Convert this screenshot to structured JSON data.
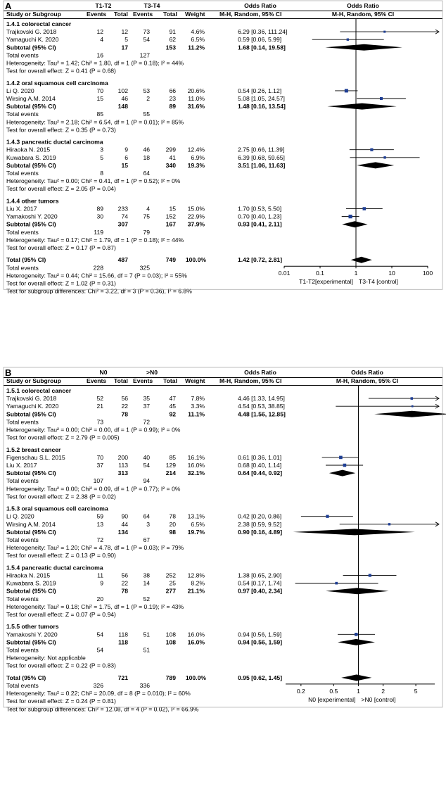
{
  "chart_data": [
    {
      "type": "forest",
      "panel": "A",
      "columns": {
        "study": "Study or Subgroup",
        "group1": "T1-T2",
        "group2": "T3-T4",
        "events": "Events",
        "total": "Total",
        "weight": "Weight",
        "or_title": "Odds Ratio",
        "or_method": "M-H, Random, 95% CI"
      },
      "axis": {
        "scale": "log",
        "ticks": [
          "0.01",
          "0.1",
          "1",
          "10",
          "100"
        ],
        "tick_values": [
          0.01,
          0.1,
          1,
          10,
          100
        ],
        "label_left": "T1-T2[experimental]",
        "label_right": "T3-T4 [control]"
      },
      "subgroups": [
        {
          "title": "1.4.1 colorectal cancer",
          "studies": [
            {
              "name": "Trajkovski G. 2018",
              "e1": "12",
              "t1": "12",
              "e2": "73",
              "t2": "91",
              "weight": "4.6%",
              "or_text": "6.29 [0.36, 111.24]",
              "or": 6.29,
              "lo": 0.36,
              "hi": 111.24
            },
            {
              "name": "Yamaguchi K. 2020",
              "e1": "4",
              "t1": "5",
              "e2": "54",
              "t2": "62",
              "weight": "6.5%",
              "or_text": "0.59 [0.06, 5.99]",
              "or": 0.59,
              "lo": 0.06,
              "hi": 5.99
            }
          ],
          "subtotal": {
            "label": "Subtotal (95% CI)",
            "t1": "17",
            "t2": "153",
            "weight": "11.2%",
            "or_text": "1.68 [0.14, 19.58]",
            "or": 1.68,
            "lo": 0.14,
            "hi": 19.58
          },
          "total_events": {
            "label": "Total events",
            "e1": "16",
            "e2": "127"
          },
          "heterogeneity": "Heterogeneity: Tau² = 1.42; Chi² = 1.80, df = 1 (P = 0.18); I² = 44%",
          "overall": "Test for overall effect: Z = 0.41 (P = 0.68)"
        },
        {
          "title": "1.4.2 oral squamous cell carcinoma",
          "studies": [
            {
              "name": "Li Q. 2020",
              "e1": "70",
              "t1": "102",
              "e2": "53",
              "t2": "66",
              "weight": "20.6%",
              "or_text": "0.54 [0.26, 1.12]",
              "or": 0.54,
              "lo": 0.26,
              "hi": 1.12
            },
            {
              "name": "Wirsing A.M. 2014",
              "e1": "15",
              "t1": "46",
              "e2": "2",
              "t2": "23",
              "weight": "11.0%",
              "or_text": "5.08 [1.05, 24.57]",
              "or": 5.08,
              "lo": 1.05,
              "hi": 24.57
            }
          ],
          "subtotal": {
            "label": "Subtotal (95% CI)",
            "t1": "148",
            "t2": "89",
            "weight": "31.6%",
            "or_text": "1.48 [0.16, 13.54]",
            "or": 1.48,
            "lo": 0.16,
            "hi": 13.54
          },
          "total_events": {
            "label": "Total events",
            "e1": "85",
            "e2": "55"
          },
          "heterogeneity": "Heterogeneity: Tau² = 2.18; Chi² = 6.54, df = 1 (P = 0.01); I² = 85%",
          "overall": "Test for overall effect: Z = 0.35 (P = 0.73)"
        },
        {
          "title": "1.4.3 pancreatic ductal carcinoma",
          "studies": [
            {
              "name": "Hiraoka N. 2015",
              "e1": "3",
              "t1": "9",
              "e2": "46",
              "t2": "299",
              "weight": "12.4%",
              "or_text": "2.75 [0.66, 11.39]",
              "or": 2.75,
              "lo": 0.66,
              "hi": 11.39
            },
            {
              "name": "Kuwabara S. 2019",
              "e1": "5",
              "t1": "6",
              "e2": "18",
              "t2": "41",
              "weight": "6.9%",
              "or_text": "6.39 [0.68, 59.65]",
              "or": 6.39,
              "lo": 0.68,
              "hi": 59.65
            }
          ],
          "subtotal": {
            "label": "Subtotal (95% CI)",
            "t1": "15",
            "t2": "340",
            "weight": "19.3%",
            "or_text": "3.51 [1.06, 11.63]",
            "or": 3.51,
            "lo": 1.06,
            "hi": 11.63
          },
          "total_events": {
            "label": "Total events",
            "e1": "8",
            "e2": "64"
          },
          "heterogeneity": "Heterogeneity: Tau² = 0.00; Chi² = 0.41, df = 1 (P = 0.52); I² = 0%",
          "overall": "Test for overall effect: Z = 2.05 (P = 0.04)"
        },
        {
          "title": "1.4.4 other tumors",
          "studies": [
            {
              "name": "Liu X. 2017",
              "e1": "89",
              "t1": "233",
              "e2": "4",
              "t2": "15",
              "weight": "15.0%",
              "or_text": "1.70 [0.53, 5.50]",
              "or": 1.7,
              "lo": 0.53,
              "hi": 5.5
            },
            {
              "name": "Yamakoshi Y. 2020",
              "e1": "30",
              "t1": "74",
              "e2": "75",
              "t2": "152",
              "weight": "22.9%",
              "or_text": "0.70 [0.40, 1.23]",
              "or": 0.7,
              "lo": 0.4,
              "hi": 1.23
            }
          ],
          "subtotal": {
            "label": "Subtotal (95% CI)",
            "t1": "307",
            "t2": "167",
            "weight": "37.9%",
            "or_text": "0.93 [0.41, 2.11]",
            "or": 0.93,
            "lo": 0.41,
            "hi": 2.11
          },
          "total_events": {
            "label": "Total events",
            "e1": "119",
            "e2": "79"
          },
          "heterogeneity": "Heterogeneity: Tau² = 0.17; Chi² = 1.79, df = 1 (P = 0.18); I² = 44%",
          "overall": "Test for overall effect: Z = 0.17 (P = 0.87)"
        }
      ],
      "total": {
        "label": "Total (95% CI)",
        "t1": "487",
        "t2": "749",
        "weight": "100.0%",
        "or_text": "1.42 [0.72, 2.81]",
        "or": 1.42,
        "lo": 0.72,
        "hi": 2.81
      },
      "total_events": {
        "label": "Total events",
        "e1": "228",
        "e2": "325"
      },
      "footer": [
        "Heterogeneity: Tau² = 0.44; Chi² = 15.66, df = 7 (P = 0.03); I² = 55%",
        "Test for overall effect: Z = 1.02 (P = 0.31)",
        "Test for subgroup differences: Chi² = 3.22, df = 3 (P = 0.36), I² = 6.8%"
      ]
    },
    {
      "type": "forest",
      "panel": "B",
      "columns": {
        "study": "Study or Subgroup",
        "group1": "N0",
        "group2": ">N0",
        "events": "Events",
        "total": "Total",
        "weight": "Weight",
        "or_title": "Odds Ratio",
        "or_method": "M-H, Random, 95% CI"
      },
      "axis": {
        "scale": "log",
        "ticks": [
          "0.2",
          "0.5",
          "1",
          "2",
          "5"
        ],
        "tick_values": [
          0.2,
          0.5,
          1,
          2,
          5
        ],
        "label_left": "N0 [experimental]",
        "label_right": ">N0 [control]"
      },
      "subgroups": [
        {
          "title": "1.5.1 colorectal cancer",
          "studies": [
            {
              "name": "Trajkovski G. 2018",
              "e1": "52",
              "t1": "56",
              "e2": "35",
              "t2": "47",
              "weight": "7.8%",
              "or_text": "4.46 [1.33, 14.95]",
              "or": 4.46,
              "lo": 1.33,
              "hi": 14.95
            },
            {
              "name": "Yamaguchi K. 2020",
              "e1": "21",
              "t1": "22",
              "e2": "37",
              "t2": "45",
              "weight": "3.3%",
              "or_text": "4.54 [0.53, 38.85]",
              "or": 4.54,
              "lo": 0.53,
              "hi": 38.85
            }
          ],
          "subtotal": {
            "label": "Subtotal (95% CI)",
            "t1": "78",
            "t2": "92",
            "weight": "11.1%",
            "or_text": "4.48 [1.56, 12.85]",
            "or": 4.48,
            "lo": 1.56,
            "hi": 12.85
          },
          "total_events": {
            "label": "Total events",
            "e1": "73",
            "e2": "72"
          },
          "heterogeneity": "Heterogeneity: Tau² = 0.00; Chi² = 0.00, df = 1 (P = 0.99); I² = 0%",
          "overall": "Test for overall effect: Z = 2.79 (P = 0.005)"
        },
        {
          "title": "1.5.2 breast cancer",
          "studies": [
            {
              "name": "Figenschau S.L. 2015",
              "e1": "70",
              "t1": "200",
              "e2": "40",
              "t2": "85",
              "weight": "16.1%",
              "or_text": "0.61 [0.36, 1.01]",
              "or": 0.61,
              "lo": 0.36,
              "hi": 1.01
            },
            {
              "name": "Liu X. 2017",
              "e1": "37",
              "t1": "113",
              "e2": "54",
              "t2": "129",
              "weight": "16.0%",
              "or_text": "0.68 [0.40, 1.14]",
              "or": 0.68,
              "lo": 0.4,
              "hi": 1.14
            }
          ],
          "subtotal": {
            "label": "Subtotal (95% CI)",
            "t1": "313",
            "t2": "214",
            "weight": "32.1%",
            "or_text": "0.64 [0.44, 0.92]",
            "or": 0.64,
            "lo": 0.44,
            "hi": 0.92
          },
          "total_events": {
            "label": "Total events",
            "e1": "107",
            "e2": "94"
          },
          "heterogeneity": "Heterogeneity: Tau² = 0.00; Chi² = 0.09, df = 1 (P = 0.77); I² = 0%",
          "overall": "Test for overall effect: Z = 2.38 (P = 0.02)"
        },
        {
          "title": "1.5.3 oral squamous cell carcinoma",
          "studies": [
            {
              "name": "Li Q. 2020",
              "e1": "59",
              "t1": "90",
              "e2": "64",
              "t2": "78",
              "weight": "13.1%",
              "or_text": "0.42 [0.20, 0.86]",
              "or": 0.42,
              "lo": 0.2,
              "hi": 0.86
            },
            {
              "name": "Wirsing A.M. 2014",
              "e1": "13",
              "t1": "44",
              "e2": "3",
              "t2": "20",
              "weight": "6.5%",
              "or_text": "2.38 [0.59, 9.52]",
              "or": 2.38,
              "lo": 0.59,
              "hi": 9.52
            }
          ],
          "subtotal": {
            "label": "Subtotal (95% CI)",
            "t1": "134",
            "t2": "98",
            "weight": "19.7%",
            "or_text": "0.90 [0.16, 4.89]",
            "or": 0.9,
            "lo": 0.16,
            "hi": 4.89
          },
          "total_events": {
            "label": "Total events",
            "e1": "72",
            "e2": "67"
          },
          "heterogeneity": "Heterogeneity: Tau² = 1.20; Chi² = 4.78, df = 1 (P = 0.03); I² = 79%",
          "overall": "Test for overall effect: Z = 0.13 (P = 0.90)"
        },
        {
          "title": "1.5.4 pancreatic ductal carcinoma",
          "studies": [
            {
              "name": "Hiraoka N. 2015",
              "e1": "11",
              "t1": "56",
              "e2": "38",
              "t2": "252",
              "weight": "12.8%",
              "or_text": "1.38 [0.65, 2.90]",
              "or": 1.38,
              "lo": 0.65,
              "hi": 2.9
            },
            {
              "name": "Kuwabara S. 2019",
              "e1": "9",
              "t1": "22",
              "e2": "14",
              "t2": "25",
              "weight": "8.2%",
              "or_text": "0.54 [0.17, 1.74]",
              "or": 0.54,
              "lo": 0.17,
              "hi": 1.74
            }
          ],
          "subtotal": {
            "label": "Subtotal (95% CI)",
            "t1": "78",
            "t2": "277",
            "weight": "21.1%",
            "or_text": "0.97 [0.40, 2.34]",
            "or": 0.97,
            "lo": 0.4,
            "hi": 2.34
          },
          "total_events": {
            "label": "Total events",
            "e1": "20",
            "e2": "52"
          },
          "heterogeneity": "Heterogeneity: Tau² = 0.18; Chi² = 1.75, df = 1 (P = 0.19); I² = 43%",
          "overall": "Test for overall effect: Z = 0.07 (P = 0.94)"
        },
        {
          "title": "1.5.5 other tumors",
          "studies": [
            {
              "name": "Yamakoshi Y. 2020",
              "e1": "54",
              "t1": "118",
              "e2": "51",
              "t2": "108",
              "weight": "16.0%",
              "or_text": "0.94 [0.56, 1.59]",
              "or": 0.94,
              "lo": 0.56,
              "hi": 1.59
            }
          ],
          "subtotal": {
            "label": "Subtotal (95% CI)",
            "t1": "118",
            "t2": "108",
            "weight": "16.0%",
            "or_text": "0.94 [0.56, 1.59]",
            "or": 0.94,
            "lo": 0.56,
            "hi": 1.59
          },
          "total_events": {
            "label": "Total events",
            "e1": "54",
            "e2": "51"
          },
          "heterogeneity": "Heterogeneity: Not applicable",
          "overall": "Test for overall effect: Z = 0.22 (P = 0.83)"
        }
      ],
      "total": {
        "label": "Total (95% CI)",
        "t1": "721",
        "t2": "789",
        "weight": "100.0%",
        "or_text": "0.95 [0.62, 1.45]",
        "or": 0.95,
        "lo": 0.62,
        "hi": 1.45
      },
      "total_events": {
        "label": "Total events",
        "e1": "326",
        "e2": "336"
      },
      "footer": [
        "Heterogeneity: Tau² = 0.22; Chi² = 20.09, df = 8 (P = 0.010); I² = 60%",
        "Test for overall effect: Z = 0.24 (P = 0.81)",
        "Test for subgroup differences: Chi² = 12.08, df = 4 (P = 0.02), I² = 66.9%"
      ]
    }
  ],
  "colors": {
    "marker": "#1f3f94",
    "line": "#000000",
    "axis_box": "#909090",
    "diamond": "#000000"
  }
}
